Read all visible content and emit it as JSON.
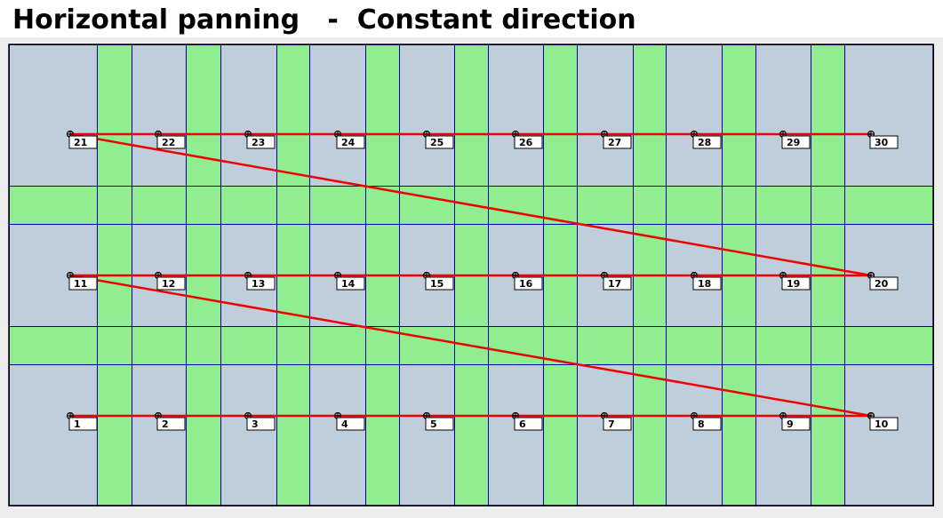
{
  "title": "Horizontal panning   -  Constant direction",
  "colors": {
    "tile": "#c0cedc",
    "overlap": "#90ee90",
    "grid_line": "#0000aa",
    "path": "#ee0000",
    "marker": "#000000",
    "label_bg": "#ffffff",
    "background": "#ededed"
  },
  "grid": {
    "columns": 10,
    "rows": 3
  },
  "path_order": [
    1,
    2,
    3,
    4,
    5,
    6,
    7,
    8,
    9,
    10,
    11,
    12,
    13,
    14,
    15,
    16,
    17,
    18,
    19,
    20,
    21,
    22,
    23,
    24,
    25,
    26,
    27,
    28,
    29,
    30
  ],
  "rows": [
    {
      "row": "top",
      "labels": [
        "21",
        "22",
        "23",
        "24",
        "25",
        "26",
        "27",
        "28",
        "29",
        "30"
      ]
    },
    {
      "row": "middle",
      "labels": [
        "11",
        "12",
        "13",
        "14",
        "15",
        "16",
        "17",
        "18",
        "19",
        "20"
      ]
    },
    {
      "row": "bottom",
      "labels": [
        "1",
        "2",
        "3",
        "4",
        "5",
        "6",
        "7",
        "8",
        "9",
        "10"
      ]
    }
  ]
}
